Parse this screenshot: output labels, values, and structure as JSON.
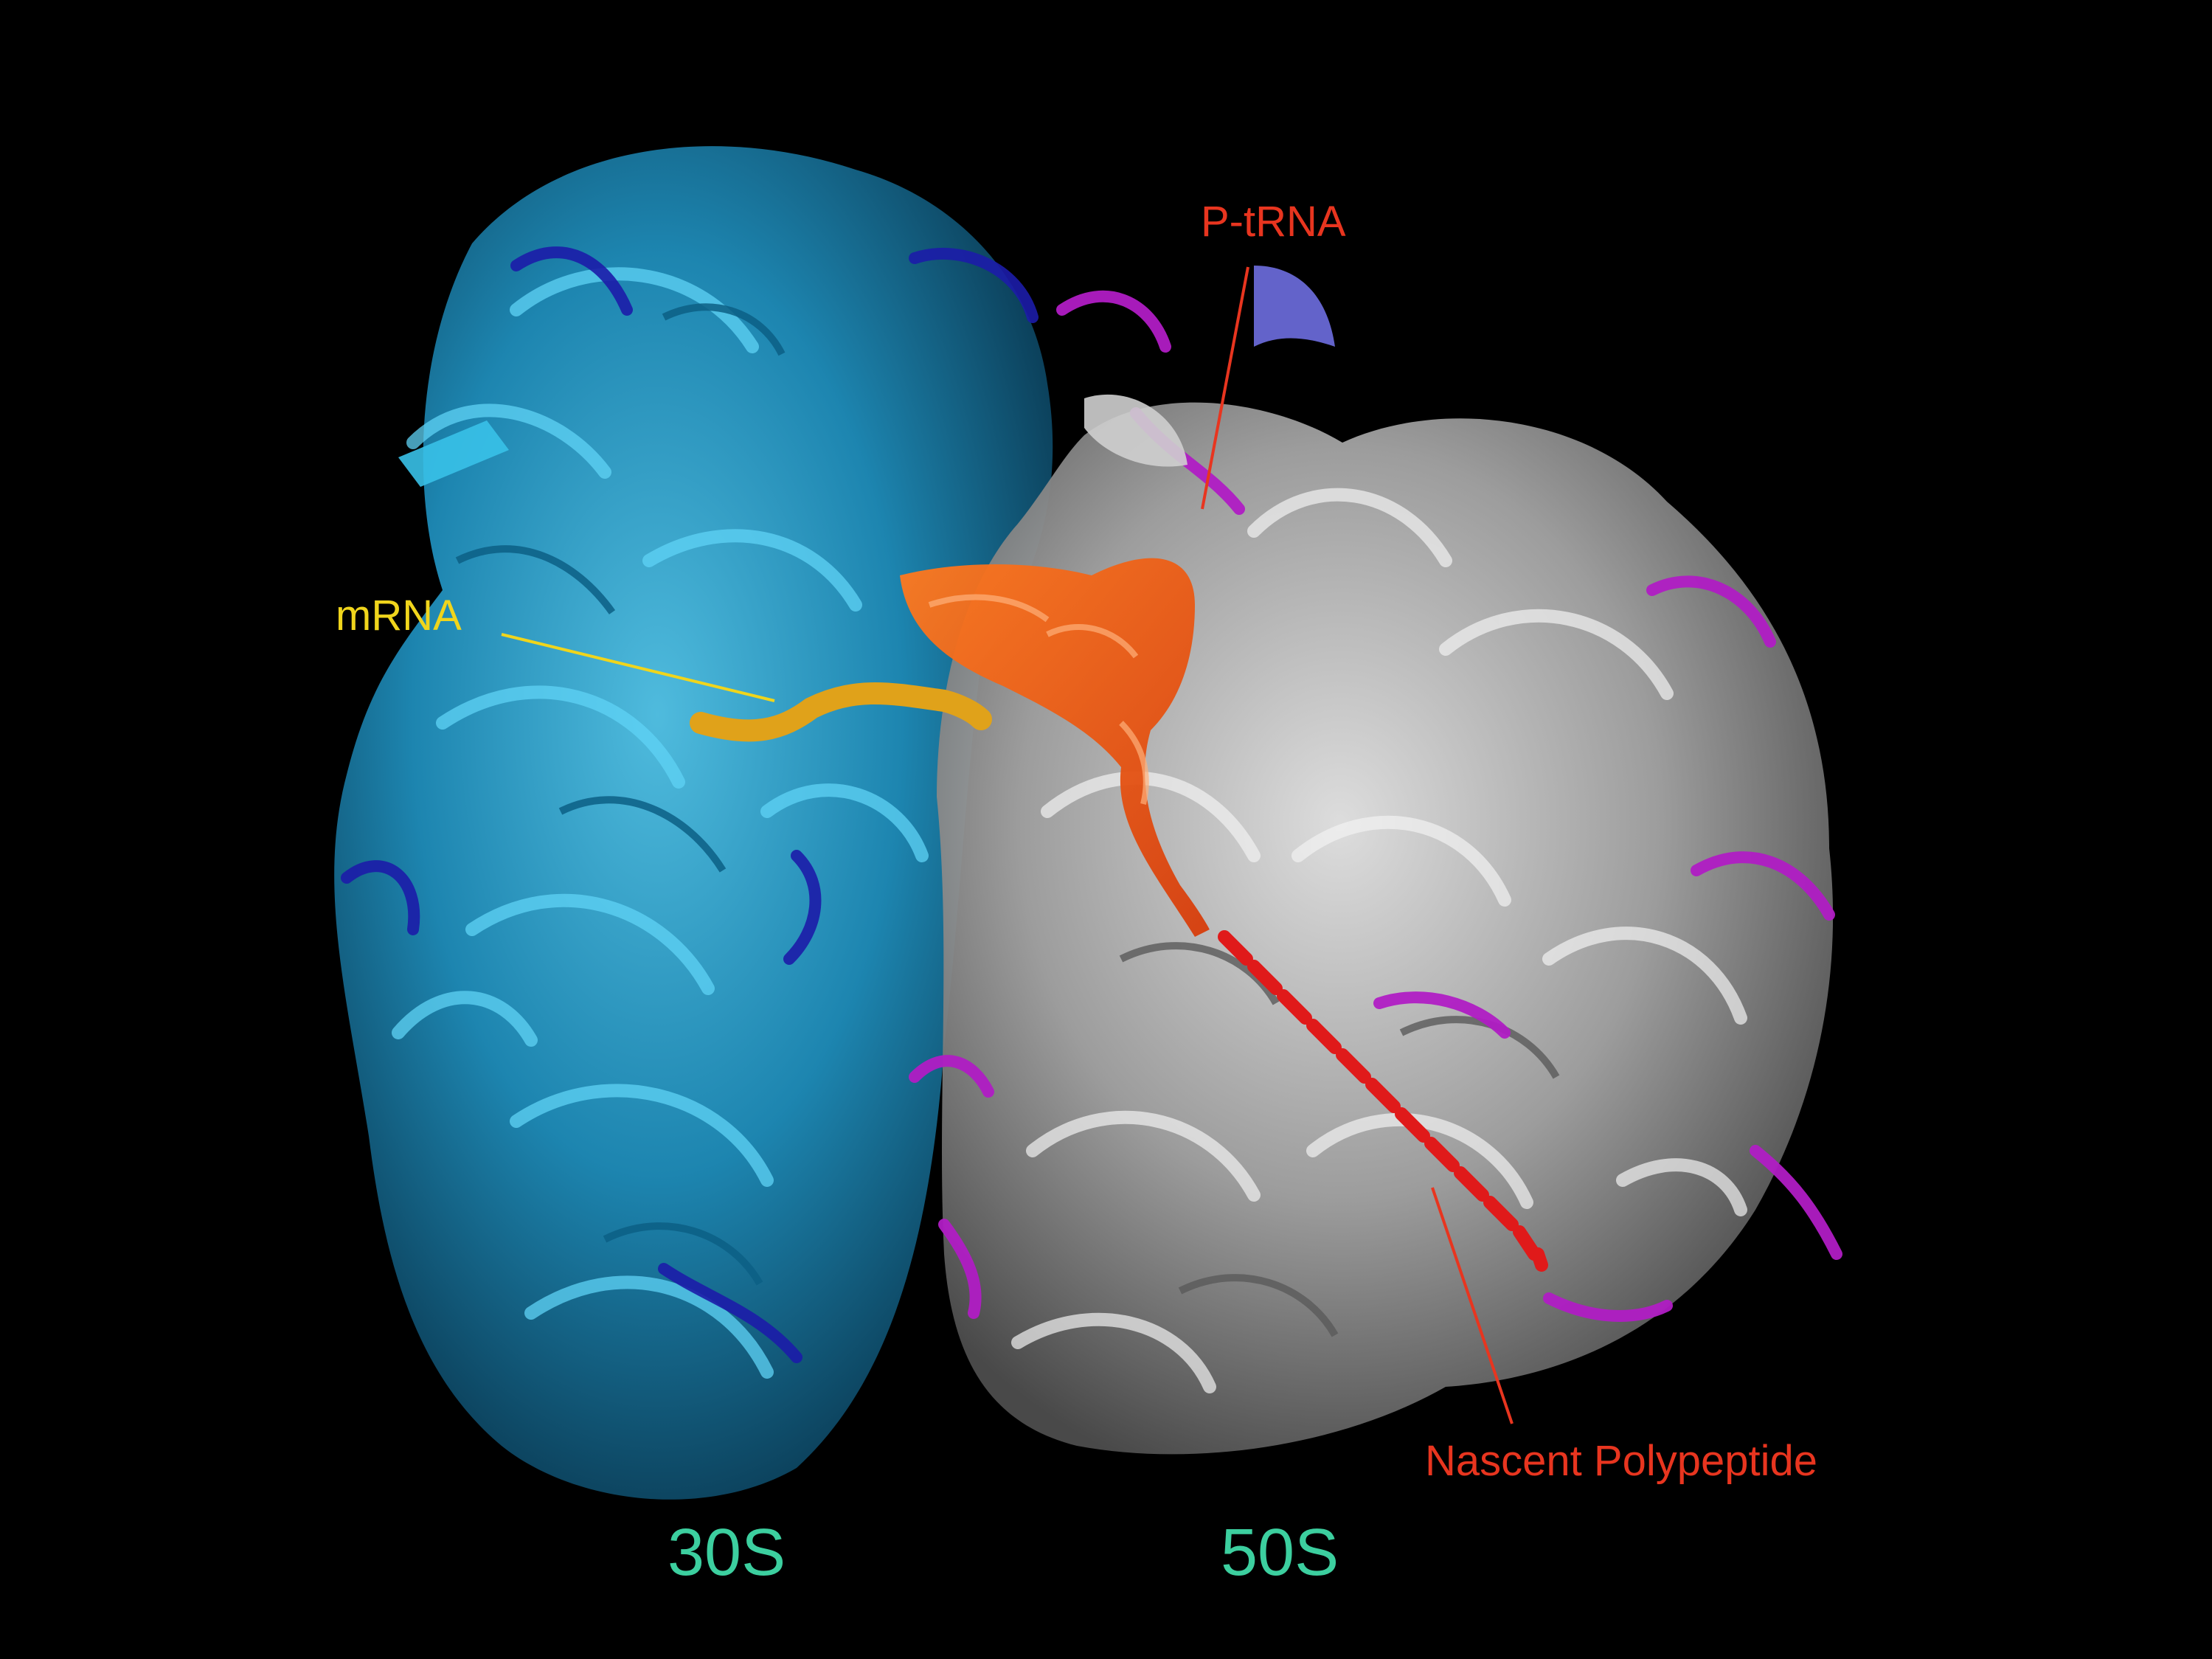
{
  "figure": {
    "background_color": "#000000",
    "subject": "ribosome-ribbon-structure"
  },
  "subunits": {
    "small": {
      "label": "30S",
      "label_color": "#3ccf9f",
      "rrna_color": "#2aa7d0",
      "protein_color": "#1c1ca8"
    },
    "large": {
      "label": "50S",
      "label_color": "#3ccf9f",
      "rrna_color": "#c8c8c8",
      "protein_color": "#b01cc4"
    }
  },
  "annotations": {
    "mrna": {
      "label": "mRNA",
      "color": "#f0d51c",
      "structure_color": "#e0a21a"
    },
    "p_trna": {
      "label": "P-tRNA",
      "color": "#e8351f",
      "structure_color": "#f15a16"
    },
    "nascent_polypeptide": {
      "label": "Nascent Polypeptide",
      "color": "#e8351f",
      "structure_color": "#e01a1a"
    }
  }
}
